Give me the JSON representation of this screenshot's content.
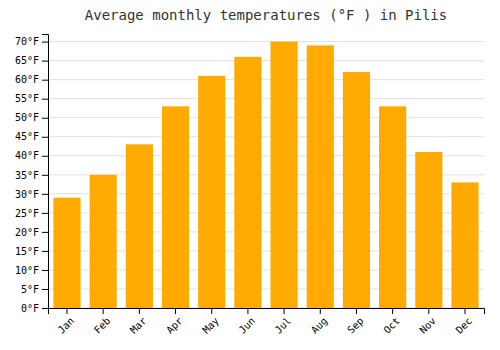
{
  "chart_data": {
    "type": "bar",
    "title": "Average monthly temperatures (°F ) in Pilis",
    "categories": [
      "Jan",
      "Feb",
      "Mar",
      "Apr",
      "May",
      "Jun",
      "Jul",
      "Aug",
      "Sep",
      "Oct",
      "Nov",
      "Dec"
    ],
    "values": [
      29,
      35,
      43,
      53,
      61,
      66,
      70,
      69,
      62,
      53,
      41,
      33
    ],
    "color": "#FFAA00",
    "ylim": [
      0,
      72
    ],
    "yticks": [
      {
        "value": 0,
        "label": "0°F"
      },
      {
        "value": 5,
        "label": "5°F"
      },
      {
        "value": 10,
        "label": "10°F"
      },
      {
        "value": 15,
        "label": "15°F"
      },
      {
        "value": 20,
        "label": "20°F"
      },
      {
        "value": 25,
        "label": "25°F"
      },
      {
        "value": 30,
        "label": "30°F"
      },
      {
        "value": 35,
        "label": "35°F"
      },
      {
        "value": 40,
        "label": "40°F"
      },
      {
        "value": 45,
        "label": "45°F"
      },
      {
        "value": 50,
        "label": "50°F"
      },
      {
        "value": 55,
        "label": "55°F"
      },
      {
        "value": 60,
        "label": "60°F"
      },
      {
        "value": 65,
        "label": "65°F"
      },
      {
        "value": 70,
        "label": "70°F"
      }
    ],
    "grid": true
  }
}
